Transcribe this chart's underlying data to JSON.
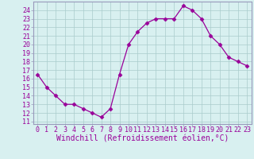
{
  "x": [
    0,
    1,
    2,
    3,
    4,
    5,
    6,
    7,
    8,
    9,
    10,
    11,
    12,
    13,
    14,
    15,
    16,
    17,
    18,
    19,
    20,
    21,
    22,
    23
  ],
  "y": [
    16.5,
    15.0,
    14.0,
    13.0,
    13.0,
    12.5,
    12.0,
    11.5,
    12.5,
    16.5,
    20.0,
    21.5,
    22.5,
    23.0,
    23.0,
    23.0,
    24.5,
    24.0,
    23.0,
    21.0,
    20.0,
    18.5,
    18.0,
    17.5
  ],
  "line_color": "#990099",
  "marker": "D",
  "marker_size": 2.5,
  "bg_color": "#d8f0f0",
  "grid_color": "#aacccc",
  "xlabel": "Windchill (Refroidissement éolien,°C)",
  "ylabel_ticks": [
    11,
    12,
    13,
    14,
    15,
    16,
    17,
    18,
    19,
    20,
    21,
    22,
    23,
    24
  ],
  "ylim": [
    10.7,
    25.0
  ],
  "xlim": [
    -0.5,
    23.5
  ],
  "tick_fontsize": 6,
  "xlabel_fontsize": 7,
  "spine_color": "#9999bb",
  "text_color": "#990099"
}
